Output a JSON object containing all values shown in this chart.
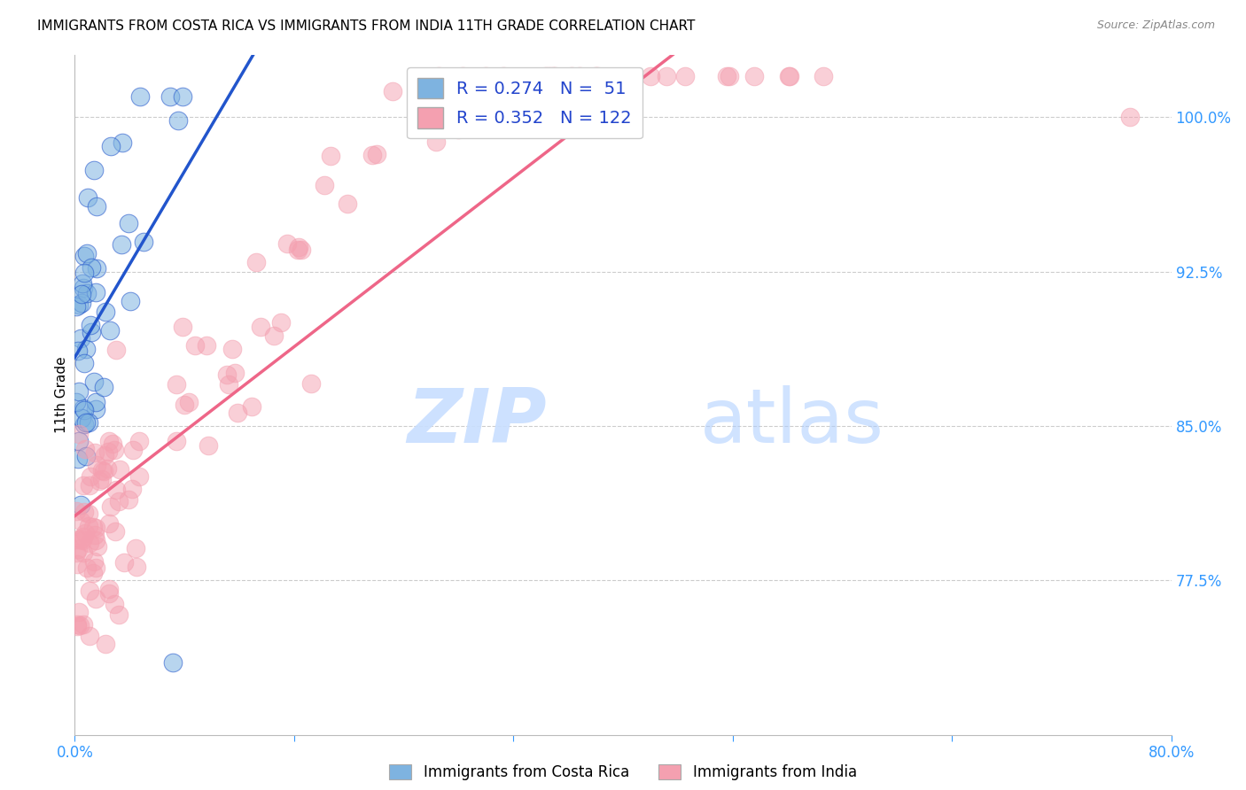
{
  "title": "IMMIGRANTS FROM COSTA RICA VS IMMIGRANTS FROM INDIA 11TH GRADE CORRELATION CHART",
  "source": "Source: ZipAtlas.com",
  "ylabel": "11th Grade",
  "ytick_labels": [
    "100.0%",
    "92.5%",
    "85.0%",
    "77.5%"
  ],
  "ytick_values": [
    1.0,
    0.925,
    0.85,
    0.775
  ],
  "xlim": [
    0.0,
    0.8
  ],
  "ylim": [
    0.7,
    1.03
  ],
  "legend_cr_r": "0.274",
  "legend_cr_n": "51",
  "legend_in_r": "0.352",
  "legend_in_n": "122",
  "color_cr": "#7EB3E0",
  "color_in": "#F4A0B0",
  "color_cr_line": "#2255CC",
  "color_in_line": "#EE6688",
  "watermark_zip": "ZIP",
  "watermark_atlas": "atlas",
  "title_fontsize": 11,
  "source_fontsize": 9
}
